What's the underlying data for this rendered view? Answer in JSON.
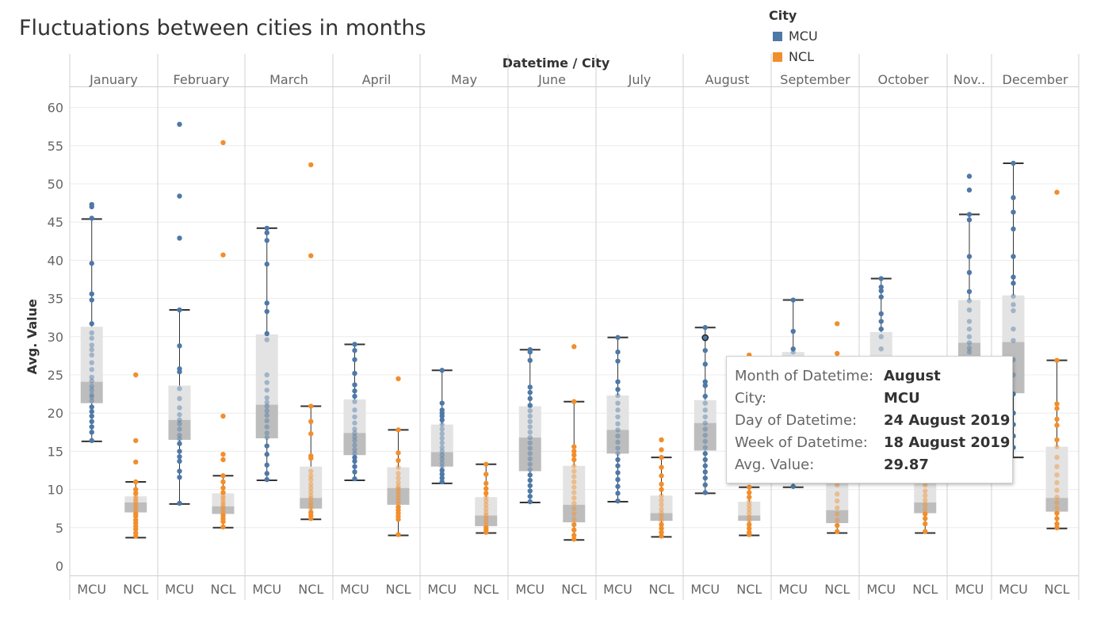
{
  "title": "Fluctuations between cities in months",
  "legend": {
    "title": "City",
    "items": [
      {
        "label": "MCU",
        "color": "#4e79a7"
      },
      {
        "label": "NCL",
        "color": "#f28e2b"
      }
    ]
  },
  "header": {
    "title": "Datetime / City"
  },
  "tooltip": {
    "rows": [
      {
        "key": "Month of Datetime:",
        "value": "August"
      },
      {
        "key": "City:",
        "value": "MCU"
      },
      {
        "key": "Day of Datetime:",
        "value": "24 August 2019"
      },
      {
        "key": "Week of Datetime:",
        "value": "18 August 2019"
      },
      {
        "key": "Avg. Value:",
        "value": "29.87"
      }
    ]
  },
  "chart_data": {
    "type": "box plot with jittered points",
    "title": "Fluctuations between cities in months",
    "ylabel": "Avg. Value",
    "ylim": [
      0,
      61
    ],
    "yticks": [
      0,
      5,
      10,
      15,
      20,
      25,
      30,
      35,
      40,
      45,
      50,
      55,
      60
    ],
    "months": [
      "January",
      "February",
      "March",
      "April",
      "May",
      "June",
      "July",
      "August",
      "September",
      "October",
      "Nov..",
      "December"
    ],
    "series_colors": {
      "MCU": "#4e79a7",
      "NCL": "#f28e2b"
    },
    "groups": [
      {
        "month": "January",
        "cities": [
          {
            "city": "MCU",
            "lower_whisker": 16.3,
            "q1": 21.3,
            "median": 24.1,
            "q3": 31.3,
            "upper_whisker": 45.4,
            "values": [
              47.3,
              47,
              45.5,
              39.6,
              35.6,
              34.8,
              31.7,
              30.5,
              29.8,
              28.9,
              28.3,
              27.6,
              26.6,
              25.7,
              24.7,
              24.2,
              23.5,
              23,
              22.4,
              22.1,
              21.6,
              20.8,
              20.2,
              19.6,
              18.9,
              18.2,
              17.5,
              16.4
            ]
          },
          {
            "city": "NCL",
            "lower_whisker": 3.7,
            "q1": 7,
            "median": 8.3,
            "q3": 9.1,
            "upper_whisker": 11,
            "values": [
              25,
              16.4,
              13.6,
              11,
              10,
              9.5,
              9.1,
              8.8,
              8.6,
              8.3,
              8,
              7.7,
              7.4,
              7.1,
              6.8,
              6.5,
              6,
              5.6,
              5.2,
              4.8,
              4.3,
              3.9
            ]
          }
        ]
      },
      {
        "month": "February",
        "cities": [
          {
            "city": "MCU",
            "lower_whisker": 8.1,
            "q1": 16.5,
            "median": 19.1,
            "q3": 23.6,
            "upper_whisker": 33.5,
            "values": [
              57.8,
              48.4,
              42.9,
              33.5,
              28.8,
              25.8,
              25.4,
              23.2,
              21.9,
              20.7,
              19.8,
              19.1,
              18.6,
              17.9,
              17.1,
              16.6,
              16,
              15,
              14.3,
              13.7,
              12.4,
              11.6,
              8.2
            ]
          },
          {
            "city": "NCL",
            "lower_whisker": 5,
            "q1": 6.8,
            "median": 7.8,
            "q3": 9.5,
            "upper_whisker": 11.8,
            "values": [
              55.4,
              40.7,
              19.6,
              14.6,
              13.9,
              11.8,
              11,
              10.2,
              9.6,
              9.1,
              8.8,
              8.4,
              8.1,
              7.8,
              7.5,
              7.2,
              6.9,
              6.6,
              6.2,
              5.8,
              5.1
            ]
          }
        ]
      },
      {
        "month": "March",
        "cities": [
          {
            "city": "MCU",
            "lower_whisker": 11.2,
            "q1": 16.7,
            "median": 21.1,
            "q3": 30.3,
            "upper_whisker": 44.2,
            "values": [
              44.2,
              43.6,
              42.6,
              39.5,
              34.4,
              33.3,
              30.4,
              29.6,
              25,
              24,
              23,
              22,
              21.4,
              20.9,
              20.3,
              19.7,
              19,
              18.2,
              17.4,
              16.8,
              15.7,
              14.6,
              13.2,
              12.1,
              11.3
            ]
          },
          {
            "city": "NCL",
            "lower_whisker": 6.1,
            "q1": 7.5,
            "median": 8.9,
            "q3": 13,
            "upper_whisker": 20.9,
            "values": [
              52.5,
              40.6,
              20.9,
              18.9,
              17.3,
              14.4,
              14.1,
              12.4,
              11.8,
              11.3,
              10.7,
              10.2,
              9.7,
              9.2,
              8.8,
              8.3,
              7.9,
              7.5,
              7,
              6.6,
              6.2
            ]
          }
        ]
      },
      {
        "month": "April",
        "cities": [
          {
            "city": "MCU",
            "lower_whisker": 11.2,
            "q1": 14.5,
            "median": 17.4,
            "q3": 21.8,
            "upper_whisker": 29,
            "values": [
              29,
              28.2,
              27,
              25.2,
              23.7,
              22.9,
              22.2,
              21.5,
              20.4,
              19.5,
              18.7,
              17.9,
              17.4,
              16.9,
              16.4,
              15.8,
              15.2,
              14.7,
              14.2,
              13.7,
              13,
              12.3,
              11.4
            ]
          },
          {
            "city": "NCL",
            "lower_whisker": 4,
            "q1": 8,
            "median": 10.2,
            "q3": 12.9,
            "upper_whisker": 17.8,
            "values": [
              24.5,
              17.8,
              14.8,
              13.8,
              12.9,
              12.1,
              11.5,
              10.9,
              10.4,
              10.1,
              9.7,
              9.3,
              8.9,
              8.5,
              8.1,
              7.7,
              7.3,
              6.9,
              6.5,
              6.1,
              4.1
            ]
          }
        ]
      },
      {
        "month": "May",
        "cities": [
          {
            "city": "MCU",
            "lower_whisker": 10.8,
            "q1": 13,
            "median": 14.9,
            "q3": 18.5,
            "upper_whisker": 25.6,
            "values": [
              25.6,
              21.3,
              20.4,
              20,
              19.6,
              19.1,
              18.5,
              17.9,
              17.3,
              16.7,
              16.1,
              15.5,
              15,
              14.5,
              14,
              13.5,
              13,
              12.5,
              12,
              11.5,
              11
            ]
          },
          {
            "city": "NCL",
            "lower_whisker": 4.3,
            "q1": 5.2,
            "median": 6.6,
            "q3": 9,
            "upper_whisker": 13.3,
            "values": [
              13.3,
              12,
              10.8,
              10.1,
              9.5,
              9,
              8.5,
              8,
              7.5,
              7,
              6.6,
              6.2,
              5.8,
              5.4,
              5,
              4.7,
              4.4
            ]
          }
        ]
      },
      {
        "month": "June",
        "cities": [
          {
            "city": "MCU",
            "lower_whisker": 8.3,
            "q1": 12.4,
            "median": 16.8,
            "q3": 20.9,
            "upper_whisker": 28.3,
            "values": [
              28.3,
              28,
              26.9,
              23.4,
              22.7,
              21.9,
              21,
              20.3,
              19.6,
              18.9,
              18.2,
              17.5,
              16.8,
              16.1,
              15.4,
              14.7,
              14,
              13.3,
              12.6,
              11.9,
              11.2,
              10.5,
              9.8,
              9.1,
              8.4
            ]
          },
          {
            "city": "NCL",
            "lower_whisker": 3.4,
            "q1": 5.7,
            "median": 8,
            "q3": 13.1,
            "upper_whisker": 21.5,
            "values": [
              28.7,
              21.5,
              15.6,
              15,
              14.5,
              13.9,
              13.1,
              12.4,
              11.7,
              11,
              10.3,
              9.6,
              8.9,
              8.2,
              7.5,
              6.8,
              6.1,
              5.4,
              4.7,
              4,
              3.5
            ]
          }
        ]
      },
      {
        "month": "July",
        "cities": [
          {
            "city": "MCU",
            "lower_whisker": 8.4,
            "q1": 14.7,
            "median": 17.8,
            "q3": 22.3,
            "upper_whisker": 29.9,
            "values": [
              29.9,
              28,
              26.8,
              24.1,
              23.1,
              22.3,
              21.3,
              20.4,
              19.5,
              18.6,
              17.8,
              17,
              16.2,
              15.4,
              14.7,
              13.9,
              13.1,
              12.2,
              11.3,
              10.4,
              9.5,
              8.5
            ]
          },
          {
            "city": "NCL",
            "lower_whisker": 3.8,
            "q1": 5.9,
            "median": 6.9,
            "q3": 9.2,
            "upper_whisker": 14.2,
            "values": [
              16.5,
              15.2,
              14.2,
              12.9,
              11.8,
              10.7,
              10,
              9.2,
              8.6,
              8,
              7.4,
              6.9,
              6.4,
              5.9,
              5.4,
              4.9,
              4.4,
              3.9
            ]
          }
        ]
      },
      {
        "month": "August",
        "cities": [
          {
            "city": "MCU",
            "lower_whisker": 9.5,
            "q1": 15.1,
            "median": 18.7,
            "q3": 21.7,
            "upper_whisker": 31.2,
            "values": [
              31.2,
              29.9,
              28.2,
              26.4,
              24.1,
              23.6,
              22.2,
              21.3,
              20.4,
              19.5,
              18.7,
              17.9,
              17.1,
              16.3,
              15.5,
              14.7,
              13.9,
              13.1,
              12.3,
              11.5,
              10.6,
              9.6
            ]
          },
          {
            "city": "NCL",
            "lower_whisker": 4,
            "q1": 5.9,
            "median": 6.6,
            "q3": 8.4,
            "upper_whisker": 10.3,
            "values": [
              27.6,
              10.3,
              9.6,
              9,
              8.4,
              7.9,
              7.4,
              6.9,
              6.4,
              5.9,
              5.4,
              4.9,
              4.4,
              4.1
            ]
          }
        ]
      },
      {
        "month": "September",
        "cities": [
          {
            "city": "MCU",
            "lower_whisker": 10.3,
            "q1": 12.5,
            "median": 18,
            "q3": 28,
            "upper_whisker": 34.8,
            "values": [
              34.8,
              30.7,
              28.4,
              28,
              26,
              24,
              22,
              20,
              18,
              16,
              14,
              12,
              10.4
            ]
          },
          {
            "city": "NCL",
            "lower_whisker": 4.3,
            "q1": 5.6,
            "median": 7.3,
            "q3": 12,
            "upper_whisker": 14,
            "values": [
              31.7,
              27.8,
              14,
              12,
              10.6,
              9.4,
              8.5,
              7.6,
              6.8,
              6,
              5.3,
              4.5
            ]
          }
        ]
      },
      {
        "month": "October",
        "cities": [
          {
            "city": "MCU",
            "lower_whisker": 12,
            "q1": 18,
            "median": 24,
            "q3": 30.6,
            "upper_whisker": 37.6,
            "values": [
              37.6,
              36.5,
              36,
              35.2,
              33,
              32,
              31,
              30,
              28.4,
              27,
              26,
              24
            ]
          },
          {
            "city": "NCL",
            "lower_whisker": 4.3,
            "q1": 6.9,
            "median": 8.3,
            "q3": 11.4,
            "upper_whisker": 14,
            "values": [
              14,
              11.4,
              10.6,
              9.8,
              9.2,
              8.6,
              8,
              7.4,
              6.8,
              6.2,
              5.5,
              4.5
            ]
          }
        ]
      },
      {
        "month": "Nov..",
        "cities": [
          {
            "city": "MCU",
            "lower_whisker": 22,
            "q1": 25,
            "median": 29.2,
            "q3": 34.8,
            "upper_whisker": 46,
            "values": [
              51,
              49.2,
              46,
              45.3,
              40.5,
              38.4,
              35.9,
              34.7,
              33.5,
              32,
              31,
              30,
              29.2,
              28.5,
              28,
              27
            ]
          }
        ]
      },
      {
        "month": "December",
        "cities": [
          {
            "city": "MCU",
            "lower_whisker": 14.2,
            "q1": 22.6,
            "median": 29.3,
            "q3": 35.4,
            "upper_whisker": 52.7,
            "values": [
              52.7,
              48.2,
              46.3,
              44.1,
              40.5,
              37.8,
              37,
              35.3,
              34.2,
              33.4,
              31,
              29.5,
              27,
              25,
              22.5,
              20,
              18.5,
              17,
              15.5
            ]
          },
          {
            "city": "NCL",
            "lower_whisker": 4.9,
            "q1": 7.1,
            "median": 8.9,
            "q3": 15.6,
            "upper_whisker": 26.9,
            "values": [
              48.9,
              26.9,
              21.2,
              20.6,
              19.2,
              18.4,
              16.5,
              15.6,
              14.2,
              13,
              11.9,
              10.9,
              9.9,
              9,
              8.3,
              7.6,
              6.9,
              6.2,
              5.5,
              5
            ]
          }
        ]
      }
    ],
    "highlight": {
      "month": "August",
      "city": "MCU",
      "value": 29.87
    }
  }
}
